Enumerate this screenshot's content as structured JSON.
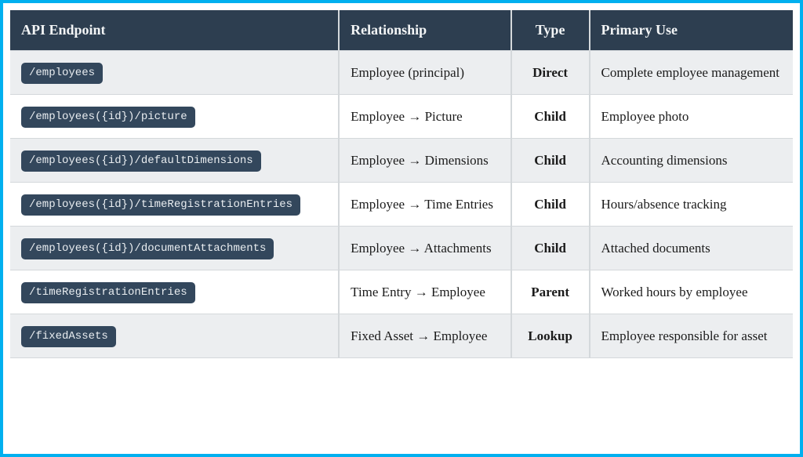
{
  "colors": {
    "outer_border": "#00b0ef",
    "header_bg": "#2d3e50",
    "header_text": "#f3f5f6",
    "badge_bg": "#33475c",
    "badge_text": "#e9edf0",
    "row_stripe_bg": "#eceef0",
    "row_bg": "#ffffff",
    "grid_line": "#d4d8db"
  },
  "table": {
    "columns": [
      {
        "key": "endpoint",
        "label": "API Endpoint",
        "align": "left"
      },
      {
        "key": "relationship",
        "label": "Relationship",
        "align": "left"
      },
      {
        "key": "type",
        "label": "Type",
        "align": "center"
      },
      {
        "key": "primary_use",
        "label": "Primary Use",
        "align": "left"
      }
    ],
    "rows": [
      {
        "endpoint": "/employees",
        "relationship": "Employee (principal)",
        "type": "Direct",
        "primary_use": "Complete employee management"
      },
      {
        "endpoint": "/employees({id})/picture",
        "relationship": "Employee → Picture",
        "type": "Child",
        "primary_use": "Employee photo"
      },
      {
        "endpoint": "/employees({id})/defaultDimensions",
        "relationship": "Employee → Dimensions",
        "type": "Child",
        "primary_use": "Accounting dimensions"
      },
      {
        "endpoint": "/employees({id})/timeRegistrationEntries",
        "relationship": "Employee → Time Entries",
        "type": "Child",
        "primary_use": "Hours/absence tracking"
      },
      {
        "endpoint": "/employees({id})/documentAttachments",
        "relationship": "Employee → Attachments",
        "type": "Child",
        "primary_use": "Attached documents"
      },
      {
        "endpoint": "/timeRegistrationEntries",
        "relationship": "Time Entry → Employee",
        "type": "Parent",
        "primary_use": "Worked hours by employee"
      },
      {
        "endpoint": "/fixedAssets",
        "relationship": "Fixed Asset → Employee",
        "type": "Lookup",
        "primary_use": "Employee responsible for asset"
      }
    ]
  }
}
